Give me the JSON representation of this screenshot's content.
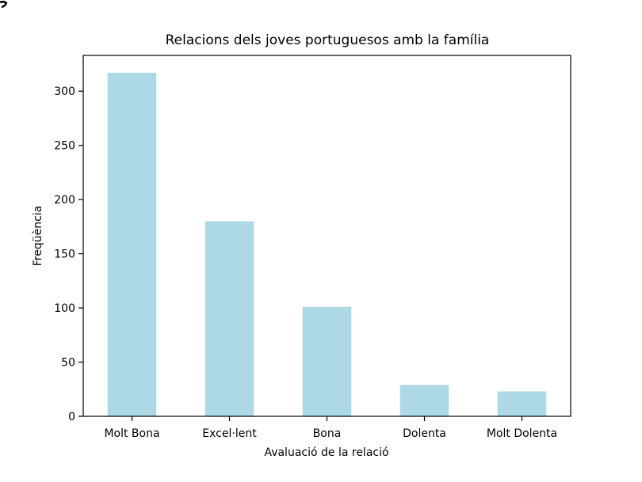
{
  "chart_data": {
    "type": "bar",
    "title": "Relacions dels joves portuguesos amb la família",
    "xlabel": "Avaluació de la relació",
    "ylabel": "Freqüència",
    "categories": [
      "Molt Bona",
      "Excel·lent",
      "Bona",
      "Dolenta",
      "Molt Dolenta"
    ],
    "values": [
      317,
      180,
      101,
      29,
      23
    ],
    "yticks": [
      0,
      50,
      100,
      150,
      200,
      250,
      300
    ],
    "ylim": [
      0,
      333
    ],
    "grid": false,
    "legend": "none",
    "colors": {
      "bar": "#add8e6",
      "axis": "#000000",
      "background": "#ffffff"
    }
  }
}
